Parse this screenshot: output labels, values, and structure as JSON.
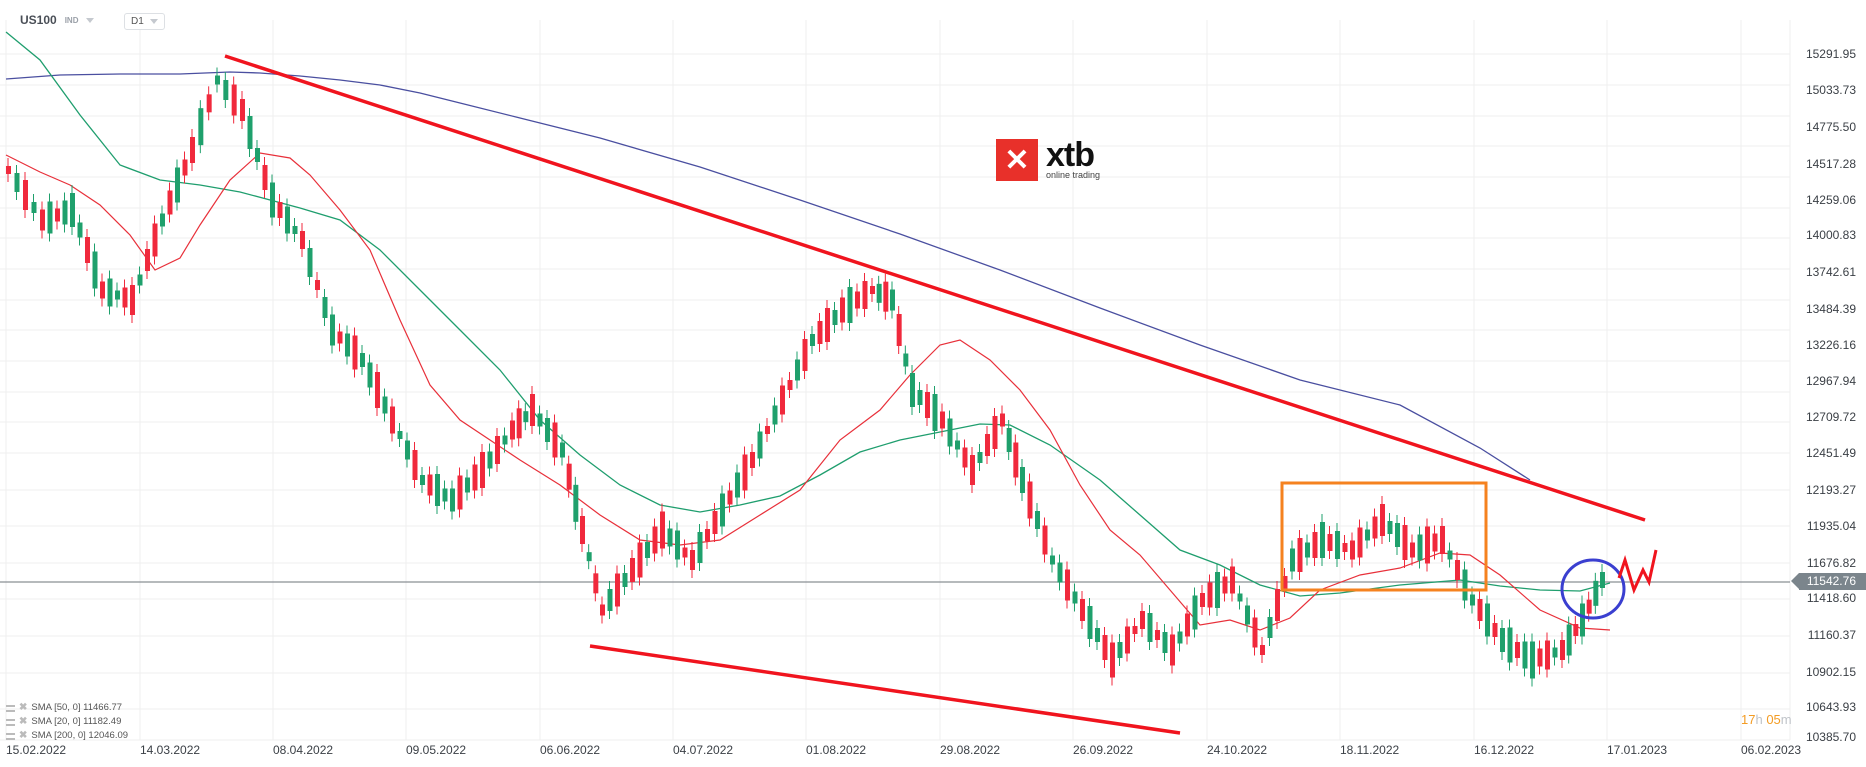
{
  "header": {
    "symbol": "US100",
    "instrument_type": "IND",
    "timeframe": "D1"
  },
  "logo": {
    "brand": "xtb",
    "tagline": "online trading",
    "mark": "✕"
  },
  "price_axis": {
    "labels": [
      "15291.95",
      "15033.73",
      "14775.50",
      "14517.28",
      "14259.06",
      "14000.83",
      "13742.61",
      "13484.39",
      "13226.16",
      "12967.94",
      "12709.72",
      "12451.49",
      "12193.27",
      "11935.04",
      "11676.82",
      "11418.60",
      "11160.37",
      "10902.15",
      "10643.93",
      "10385.70"
    ],
    "current_price": "11542.76"
  },
  "date_axis": {
    "labels": [
      "15.02.2022",
      "14.03.2022",
      "08.04.2022",
      "09.05.2022",
      "06.06.2022",
      "04.07.2022",
      "01.08.2022",
      "29.08.2022",
      "26.09.2022",
      "24.10.2022",
      "18.11.2022",
      "16.12.2022",
      "17.01.2023",
      "06.02.2023"
    ]
  },
  "legend": [
    {
      "label": "SMA [50, 0] 11466.77",
      "color": "#1f9e6e"
    },
    {
      "label": "SMA [20, 0] 11182.49",
      "color": "#e8303a"
    },
    {
      "label": "SMA [200, 0] 12046.09",
      "color": "#4a4fa0"
    }
  ],
  "timer": {
    "hours": "17",
    "h": "h",
    "minutes": "05",
    "m": "m"
  },
  "colors": {
    "up": "#1fa06c",
    "down": "#f0293c",
    "sma50": "#1f9e6e",
    "sma20": "#e8303a",
    "sma200": "#4a4fa0",
    "trendline": "#f0141e",
    "box": "#f5821f",
    "circle": "#3a3fd0"
  },
  "chart_data": {
    "type": "candlestick",
    "title": "US100 D1",
    "xlabel": "",
    "ylabel": "",
    "ylim": [
      10385.7,
      15291.95
    ],
    "grid": true,
    "x": [
      "15.02.2022",
      "14.03.2022",
      "08.04.2022",
      "09.05.2022",
      "06.06.2022",
      "04.07.2022",
      "01.08.2022",
      "29.08.2022",
      "26.09.2022",
      "24.10.2022",
      "18.11.2022",
      "16.12.2022",
      "17.01.2023",
      "06.02.2023"
    ],
    "approx_close": [
      14300,
      14500,
      14700,
      12600,
      11200,
      11800,
      13100,
      12300,
      11100,
      11300,
      12000,
      11100,
      11540,
      null
    ],
    "series": [
      {
        "name": "SMA [50, 0]",
        "last": 11466.77
      },
      {
        "name": "SMA [20, 0]",
        "last": 11182.49
      },
      {
        "name": "SMA [200, 0]",
        "last": 12046.09
      }
    ],
    "annotations": [
      "Descending resistance trendline from ~15250 (Mar 2022) to ~11970 (Jan 2023)",
      "Descending support trendline from ~11080 (Jun 2022) to ~10440 (Oct 2022)",
      "Orange consolidation box ~11480–12210 (Nov–Dec 2022)",
      "Blue circle around latest candles near 11542.76",
      "Red zigzag projection upward"
    ],
    "current_price": 11542.76
  }
}
